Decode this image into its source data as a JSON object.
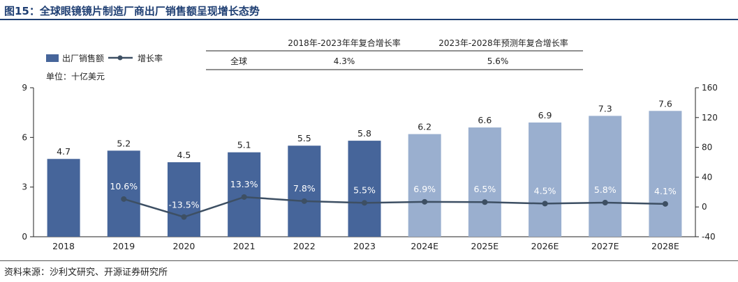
{
  "title": "图15：全球眼镜镜片制造厂商出厂销售额呈现增长态势",
  "source": "资料来源：沙利文研究、开源证券研究所",
  "unit_label": "单位：十亿美元",
  "colors": {
    "actual_bar": "#46659a",
    "forecast_bar": "#9aafcf",
    "line": "#3d4f63",
    "title": "#1f3f73"
  },
  "cagr_table": {
    "headers": [
      "2018年-2023年年复合增长率",
      "2023年-2028年预测年复合增长率"
    ],
    "row_label": "全球",
    "values": [
      "4.3%",
      "5.6%"
    ]
  },
  "chart_data": {
    "type": "bar",
    "categories": [
      "2018",
      "2019",
      "2020",
      "2021",
      "2022",
      "2023",
      "2024E",
      "2025E",
      "2026E",
      "2027E",
      "2028E"
    ],
    "series": [
      {
        "name": "出厂销售额",
        "type": "bar",
        "axis": "left",
        "values": [
          4.7,
          5.2,
          4.5,
          5.1,
          5.5,
          5.8,
          6.2,
          6.6,
          6.9,
          7.3,
          7.6
        ],
        "labels": [
          "4.7",
          "5.2",
          "4.5",
          "5.1",
          "5.5",
          "5.8",
          "6.2",
          "6.6",
          "6.9",
          "7.3",
          "7.6"
        ]
      },
      {
        "name": "增长率",
        "type": "line",
        "axis": "right",
        "values": [
          null,
          10.6,
          -13.5,
          13.3,
          7.8,
          5.5,
          6.9,
          6.5,
          4.5,
          5.8,
          4.1
        ],
        "labels": [
          "",
          "10.6%",
          "-13.5%",
          "13.3%",
          "7.8%",
          "5.5%",
          "6.9%",
          "6.5%",
          "4.5%",
          "5.8%",
          "4.1%"
        ]
      }
    ],
    "ylim_left": [
      0,
      9
    ],
    "yticks_left": [
      "0",
      "3",
      "6",
      "9"
    ],
    "ylim_right": [
      -40,
      160
    ],
    "yticks_right": [
      "-40",
      "0",
      "40",
      "80",
      "120",
      "160"
    ],
    "forecast_from_index": 6,
    "legend_position": "top-left",
    "grid": false
  }
}
